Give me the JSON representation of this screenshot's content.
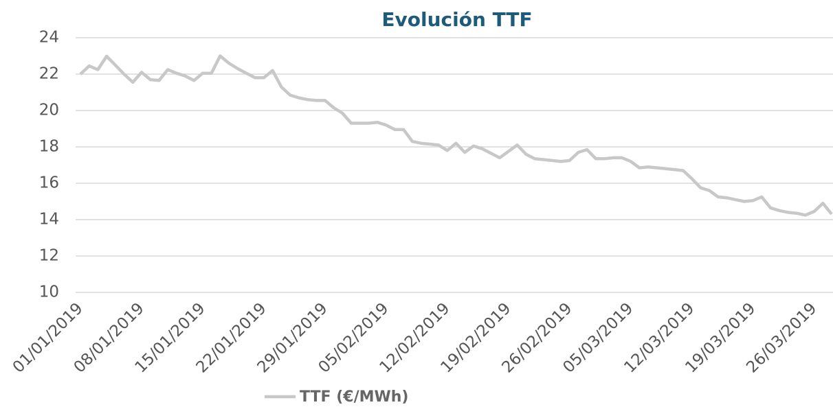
{
  "chart_data": {
    "type": "line",
    "title": "Evolución TTF",
    "categories": [
      "01/01/2019",
      null,
      null,
      null,
      null,
      null,
      null,
      "08/01/2019",
      null,
      null,
      null,
      null,
      null,
      null,
      "15/01/2019",
      null,
      null,
      null,
      null,
      null,
      null,
      "22/01/2019",
      null,
      null,
      null,
      null,
      null,
      null,
      "29/01/2019",
      null,
      null,
      null,
      null,
      null,
      null,
      "05/02/2019",
      null,
      null,
      null,
      null,
      null,
      null,
      "12/02/2019",
      null,
      null,
      null,
      null,
      null,
      null,
      "19/02/2019",
      null,
      null,
      null,
      null,
      null,
      null,
      "26/02/2019",
      null,
      null,
      null,
      null,
      null,
      null,
      "05/03/2019",
      null,
      null,
      null,
      null,
      null,
      null,
      "12/03/2019",
      null,
      null,
      null,
      null,
      null,
      null,
      "19/03/2019",
      null,
      null,
      null,
      null,
      null,
      null,
      "26/03/2019",
      null,
      null
    ],
    "series": [
      {
        "name": "TTF (€/MWh)",
        "color": "#c8c8c8",
        "values": [
          22.0,
          22.45,
          22.25,
          22.98,
          22.5,
          22.0,
          21.55,
          22.1,
          21.7,
          21.65,
          22.25,
          22.05,
          21.9,
          21.65,
          22.05,
          22.05,
          23.0,
          22.6,
          22.3,
          22.05,
          21.8,
          21.8,
          22.2,
          21.3,
          20.85,
          20.7,
          20.6,
          20.55,
          20.55,
          20.15,
          19.85,
          19.3,
          19.3,
          19.3,
          19.35,
          19.2,
          18.95,
          18.95,
          18.3,
          18.2,
          18.15,
          18.1,
          17.8,
          18.2,
          17.7,
          18.05,
          17.9,
          17.65,
          17.4,
          17.75,
          18.1,
          17.6,
          17.35,
          17.3,
          17.25,
          17.2,
          17.25,
          17.7,
          17.85,
          17.35,
          17.35,
          17.4,
          17.4,
          17.2,
          16.85,
          16.9,
          16.85,
          16.8,
          16.75,
          16.7,
          16.25,
          15.75,
          15.6,
          15.25,
          15.2,
          15.1,
          15.0,
          15.05,
          15.25,
          14.65,
          14.5,
          14.4,
          14.35,
          14.25,
          14.45,
          14.9,
          14.3
        ]
      }
    ],
    "ylim": [
      10,
      24
    ],
    "yticks": [
      10,
      12,
      14,
      16,
      18,
      20,
      22,
      24
    ],
    "grid": true,
    "legend": "bottom"
  }
}
